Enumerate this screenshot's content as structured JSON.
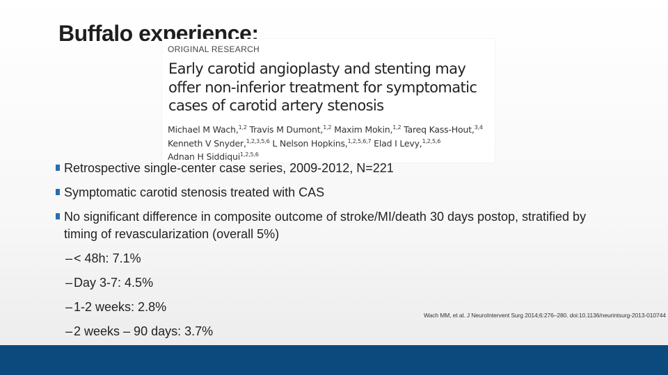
{
  "slide": {
    "title": "Buffalo experience:",
    "article": {
      "label": "ORIGINAL RESEARCH",
      "title": "Early carotid angioplasty and stenting may offer non-inferior treatment for symptomatic cases of carotid artery stenosis",
      "authors": [
        {
          "name": "Michael M Wach,",
          "sup": "1,2"
        },
        {
          "name": "Travis M Dumont,",
          "sup": "1,2"
        },
        {
          "name": "Maxim Mokin,",
          "sup": "1,2"
        },
        {
          "name": "Tareq Kass-Hout,",
          "sup": "3,4"
        },
        {
          "name": "Kenneth V Snyder,",
          "sup": "1,2,3,5,6"
        },
        {
          "name": "L Nelson Hopkins,",
          "sup": "1,2,5,6,7"
        },
        {
          "name": "Elad I Levy,",
          "sup": "1,2,5,6"
        },
        {
          "name": "Adnan H Siddiqui",
          "sup": "1,2,5,6"
        }
      ]
    },
    "bullets": [
      "Retrospective single-center case series, 2009-2012, N=221",
      "Symptomatic carotid stenosis treated with CAS",
      "No significant difference in composite outcome of stroke/MI/death 30 days postop, stratified by timing of revascularization (overall 5%)"
    ],
    "sub_bullets": [
      "< 48h: 7.1%",
      "Day 3-7: 4.5%",
      "1-2 weeks: 2.8%",
      "2 weeks – 90 days: 3.7%"
    ],
    "dash": "–",
    "citation": "Wach MM, et al. J NeuroIntervent Surg 2014;6:276–280. doi:10.1136/neurintsurg-2013-010744"
  },
  "colors": {
    "accent_bullet": "#2b6cb0",
    "footer_bar": "#0c4a7e"
  }
}
